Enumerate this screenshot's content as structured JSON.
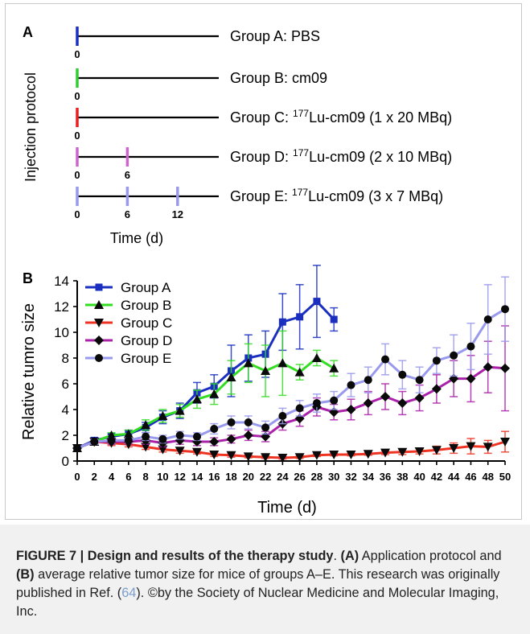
{
  "panel_a": {
    "label": "A",
    "ylabel": "Injection protocol",
    "xlabel": "Time (d)",
    "groups": [
      {
        "text_pre": "Group A: PBS",
        "sup": "",
        "text_post": "",
        "color": "#1a2fbf",
        "days": [
          0
        ],
        "day_labels": [
          "0"
        ]
      },
      {
        "text_pre": "Group B: cm09",
        "sup": "",
        "text_post": "",
        "color": "#33cc33",
        "days": [
          0
        ],
        "day_labels": [
          "0"
        ]
      },
      {
        "text_pre": "Group C: ",
        "sup": "177",
        "text_post": "Lu-cm09 (1 x 20 MBq)",
        "color": "#e82020",
        "days": [
          0
        ],
        "day_labels": [
          "0"
        ]
      },
      {
        "text_pre": "Group D: ",
        "sup": "177",
        "text_post": "Lu-cm09 (2 x 10 MBq)",
        "color": "#cc66cc",
        "days": [
          0,
          6
        ],
        "day_labels": [
          "0",
          "6"
        ]
      },
      {
        "text_pre": "Group E: ",
        "sup": "177",
        "text_post": "Lu-cm09 (3 x   7 MBq)",
        "color": "#9999ee",
        "days": [
          0,
          6,
          12
        ],
        "day_labels": [
          "0",
          "6",
          "12"
        ]
      }
    ]
  },
  "caption": {
    "fig_label": "FIGURE 7 | Design and results of the therapy study",
    "after_label": ". ",
    "part_a_label": "(A)",
    "part_a_text": " Application protocol and ",
    "part_b_label": "(B)",
    "part_b_text": " average relative tumor size for mice of groups A–E. This research was originally published in Ref. (",
    "ref_number": "64",
    "tail_text": "). ©by the Society of Nuclear Medicine and Molecular Imaging, Inc."
  },
  "chart_data": {
    "type": "line",
    "panel_label": "B",
    "title": "",
    "xlabel": "Time (d)",
    "ylabel": "Relative tumro size",
    "xlim": [
      0,
      50
    ],
    "ylim": [
      0,
      14
    ],
    "xticks": [
      0,
      2,
      4,
      6,
      8,
      10,
      12,
      14,
      16,
      18,
      20,
      22,
      24,
      26,
      28,
      30,
      32,
      34,
      36,
      38,
      40,
      42,
      44,
      46,
      48,
      50
    ],
    "yticks": [
      0,
      2,
      4,
      6,
      8,
      10,
      12,
      14
    ],
    "legend_position": "top-left",
    "grid": false,
    "series": [
      {
        "name": "Group A",
        "color": "#1a2fbf",
        "marker": "square",
        "x": [
          0,
          2,
          4,
          6,
          8,
          10,
          12,
          14,
          16,
          18,
          20,
          22,
          24,
          26,
          28,
          30
        ],
        "y": [
          1.0,
          1.6,
          1.9,
          2.1,
          2.6,
          3.4,
          3.9,
          5.3,
          5.8,
          7.0,
          8.0,
          8.3,
          10.8,
          11.2,
          12.4,
          11.0
        ],
        "err": [
          0.1,
          0.2,
          0.2,
          0.3,
          0.4,
          0.5,
          0.6,
          0.8,
          0.9,
          2.0,
          1.8,
          1.8,
          2.2,
          2.5,
          2.8,
          0.9
        ]
      },
      {
        "name": "Group B",
        "color": "#33dd22",
        "marker": "triangle-up",
        "x": [
          0,
          2,
          4,
          6,
          8,
          10,
          12,
          14,
          16,
          18,
          20,
          22,
          24,
          26,
          28,
          30
        ],
        "y": [
          1.0,
          1.5,
          2.0,
          2.1,
          2.8,
          3.5,
          3.9,
          4.8,
          5.2,
          6.5,
          7.6,
          7.0,
          7.6,
          6.9,
          8.0,
          7.2
        ],
        "err": [
          0.1,
          0.2,
          0.2,
          0.3,
          0.4,
          0.5,
          0.5,
          0.7,
          0.8,
          1.3,
          1.5,
          2.0,
          2.5,
          0.6,
          0.6,
          0.6
        ]
      },
      {
        "name": "Group C",
        "color": "#ee3322",
        "marker": "triangle-down",
        "x": [
          0,
          2,
          4,
          6,
          8,
          10,
          12,
          14,
          16,
          18,
          20,
          22,
          24,
          26,
          28,
          30,
          32,
          34,
          36,
          38,
          40,
          42,
          44,
          46,
          48,
          50
        ],
        "y": [
          1.0,
          1.5,
          1.4,
          1.3,
          1.1,
          0.9,
          0.8,
          0.7,
          0.5,
          0.45,
          0.35,
          0.3,
          0.25,
          0.3,
          0.45,
          0.5,
          0.5,
          0.55,
          0.65,
          0.7,
          0.75,
          0.85,
          1.0,
          1.15,
          1.1,
          1.5
        ],
        "err": [
          0.1,
          0.2,
          0.2,
          0.2,
          0.2,
          0.2,
          0.2,
          0.15,
          0.15,
          0.15,
          0.1,
          0.1,
          0.1,
          0.1,
          0.1,
          0.1,
          0.1,
          0.1,
          0.15,
          0.2,
          0.2,
          0.3,
          0.4,
          0.6,
          0.5,
          0.8
        ]
      },
      {
        "name": "Group D",
        "color": "#aa22aa",
        "marker": "diamond",
        "x": [
          0,
          2,
          4,
          6,
          8,
          10,
          12,
          14,
          16,
          18,
          20,
          22,
          24,
          26,
          28,
          30,
          32,
          34,
          36,
          38,
          40,
          42,
          44,
          46,
          48,
          50
        ],
        "y": [
          1.0,
          1.5,
          1.5,
          1.5,
          1.6,
          1.4,
          1.6,
          1.5,
          1.5,
          1.7,
          2.0,
          1.9,
          2.9,
          3.3,
          4.2,
          3.8,
          4.0,
          4.5,
          5.0,
          4.5,
          4.9,
          5.6,
          6.4,
          6.4,
          7.3,
          7.2
        ],
        "err": [
          0.1,
          0.2,
          0.2,
          0.2,
          0.3,
          0.3,
          0.3,
          0.3,
          0.3,
          0.3,
          0.4,
          0.4,
          0.5,
          0.6,
          0.7,
          0.6,
          0.8,
          0.9,
          1.0,
          0.9,
          1.0,
          1.1,
          1.4,
          1.8,
          2.0,
          3.3
        ]
      },
      {
        "name": "Group E",
        "color": "#9999ee",
        "marker": "circle",
        "x": [
          0,
          2,
          4,
          6,
          8,
          10,
          12,
          14,
          16,
          18,
          20,
          22,
          24,
          26,
          28,
          30,
          32,
          34,
          36,
          38,
          40,
          42,
          44,
          46,
          48,
          50
        ],
        "y": [
          1.0,
          1.5,
          1.6,
          1.6,
          1.9,
          1.7,
          2.0,
          1.9,
          2.5,
          3.0,
          3.0,
          2.6,
          3.5,
          4.1,
          4.5,
          4.7,
          5.9,
          6.3,
          7.9,
          6.7,
          6.3,
          7.8,
          8.2,
          8.9,
          11.0,
          11.8
        ],
        "err": [
          0.1,
          0.2,
          0.2,
          0.2,
          0.3,
          0.3,
          0.3,
          0.3,
          0.4,
          0.5,
          0.5,
          0.5,
          0.6,
          0.6,
          0.7,
          0.7,
          0.9,
          1.0,
          1.2,
          1.1,
          1.0,
          1.0,
          1.6,
          1.8,
          2.7,
          2.5
        ]
      }
    ]
  }
}
